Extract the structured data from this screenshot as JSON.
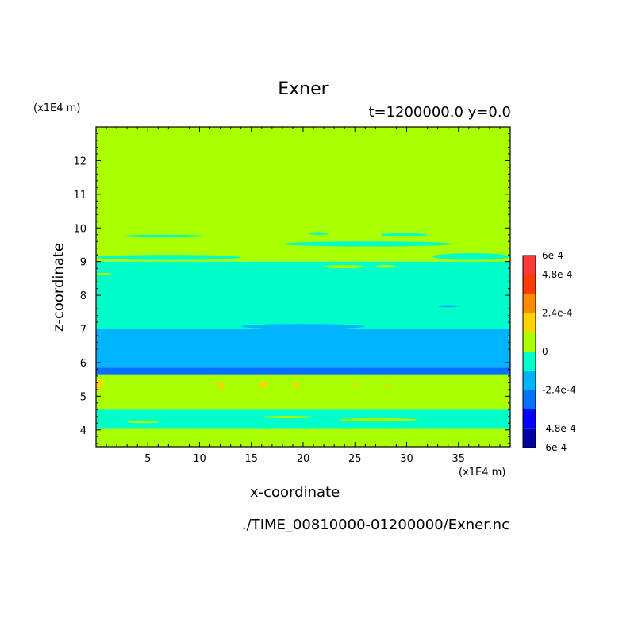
{
  "title": "Exner",
  "subtitle": "t=1200000.0 y=0.0",
  "y_unit": "(x1E4 m)",
  "x_unit": "(x1E4 m)",
  "xlabel": "x-coordinate",
  "ylabel": "z-coordinate",
  "filename": "./TIME_00810000-01200000/Exner.nc",
  "chart_data": {
    "type": "heatmap",
    "title": "Exner",
    "subtitle": "t=1200000.0 y=0.0",
    "xlabel": "x-coordinate",
    "ylabel": "z-coordinate",
    "x_unit": "(x1E4 m)",
    "y_unit": "(x1E4 m)",
    "xlim": [
      0,
      40
    ],
    "ylim": [
      3.5,
      13
    ],
    "x_ticks": [
      5,
      10,
      15,
      20,
      25,
      30,
      35
    ],
    "y_ticks": [
      4,
      5,
      6,
      7,
      8,
      9,
      10,
      11,
      12
    ],
    "colorbar": {
      "levels": [
        -0.0006,
        -0.00048,
        -0.00036,
        -0.00024,
        -0.00012,
        0,
        0.00012,
        0.00024,
        0.00036,
        0.00048,
        0.0006
      ],
      "colors": [
        "#0000a0",
        "#0000ff",
        "#0070ff",
        "#00b4ff",
        "#00ffc8",
        "#aaff00",
        "#ffd400",
        "#ff8c00",
        "#ff3c00",
        "#ff3838"
      ],
      "tick_labels": [
        {
          "value": 0.0006,
          "label": "6e-4"
        },
        {
          "value": 0.00048,
          "label": "4.8e-4"
        },
        {
          "value": 0.00024,
          "label": "2.4e-4"
        },
        {
          "value": 0,
          "label": "0"
        },
        {
          "value": -0.00024,
          "label": "-2.4e-4"
        },
        {
          "value": -0.00048,
          "label": "-4.8e-4"
        },
        {
          "value": -0.0006,
          "label": "-6e-4"
        }
      ]
    },
    "bands": [
      {
        "z0": 9.0,
        "z1": 13.0,
        "level_index": 5
      },
      {
        "z0": 7.0,
        "z1": 9.0,
        "level_index": 4
      },
      {
        "z0": 5.85,
        "z1": 7.0,
        "level_index": 3
      },
      {
        "z0": 5.65,
        "z1": 5.85,
        "level_index": 2
      },
      {
        "z0": 4.6,
        "z1": 5.65,
        "level_index": 5
      },
      {
        "z0": 4.05,
        "z1": 4.6,
        "level_index": 4
      },
      {
        "z0": 3.5,
        "z1": 4.05,
        "level_index": 5
      }
    ],
    "patches": [
      {
        "x0": 0.0,
        "x1": 14.0,
        "z0": 9.05,
        "z1": 9.2,
        "level_index": 4
      },
      {
        "x0": 2.5,
        "x1": 10.5,
        "z0": 9.72,
        "z1": 9.8,
        "level_index": 4
      },
      {
        "x0": 18.0,
        "x1": 34.5,
        "z0": 9.45,
        "z1": 9.6,
        "level_index": 4
      },
      {
        "x0": 27.5,
        "x1": 32.0,
        "z0": 9.75,
        "z1": 9.85,
        "level_index": 4
      },
      {
        "x0": 20.5,
        "x1": 22.5,
        "z0": 9.8,
        "z1": 9.88,
        "level_index": 4
      },
      {
        "x0": 32.5,
        "x1": 40.0,
        "z0": 9.05,
        "z1": 9.25,
        "level_index": 4
      },
      {
        "x0": 22.0,
        "x1": 26.0,
        "z0": 8.8,
        "z1": 8.9,
        "level_index": 5
      },
      {
        "x0": 27.0,
        "x1": 29.0,
        "z0": 8.82,
        "z1": 8.9,
        "level_index": 5
      },
      {
        "x0": 0.0,
        "x1": 1.5,
        "z0": 8.6,
        "z1": 8.66,
        "level_index": 5
      },
      {
        "x0": 33.0,
        "x1": 35.0,
        "z0": 7.65,
        "z1": 7.7,
        "level_index": 3
      },
      {
        "x0": 14.0,
        "x1": 26.0,
        "z0": 7.0,
        "z1": 7.15,
        "level_index": 3
      },
      {
        "x0": 0.0,
        "x1": 0.6,
        "z0": 5.2,
        "z1": 5.5,
        "level_index": 6
      },
      {
        "x0": 11.8,
        "x1": 12.3,
        "z0": 5.2,
        "z1": 5.45,
        "level_index": 6
      },
      {
        "x0": 15.8,
        "x1": 16.5,
        "z0": 5.25,
        "z1": 5.45,
        "level_index": 6
      },
      {
        "x0": 19.0,
        "x1": 19.5,
        "z0": 5.25,
        "z1": 5.42,
        "level_index": 6
      },
      {
        "x0": 25.0,
        "x1": 25.4,
        "z0": 5.28,
        "z1": 5.4,
        "level_index": 6
      },
      {
        "x0": 28.0,
        "x1": 28.3,
        "z0": 5.3,
        "z1": 5.38,
        "level_index": 6
      },
      {
        "x0": 3.0,
        "x1": 6.0,
        "z0": 4.2,
        "z1": 4.28,
        "level_index": 5
      },
      {
        "x0": 16.0,
        "x1": 21.0,
        "z0": 4.35,
        "z1": 4.42,
        "level_index": 5
      },
      {
        "x0": 23.5,
        "x1": 31.0,
        "z0": 4.25,
        "z1": 4.35,
        "level_index": 5
      }
    ]
  }
}
